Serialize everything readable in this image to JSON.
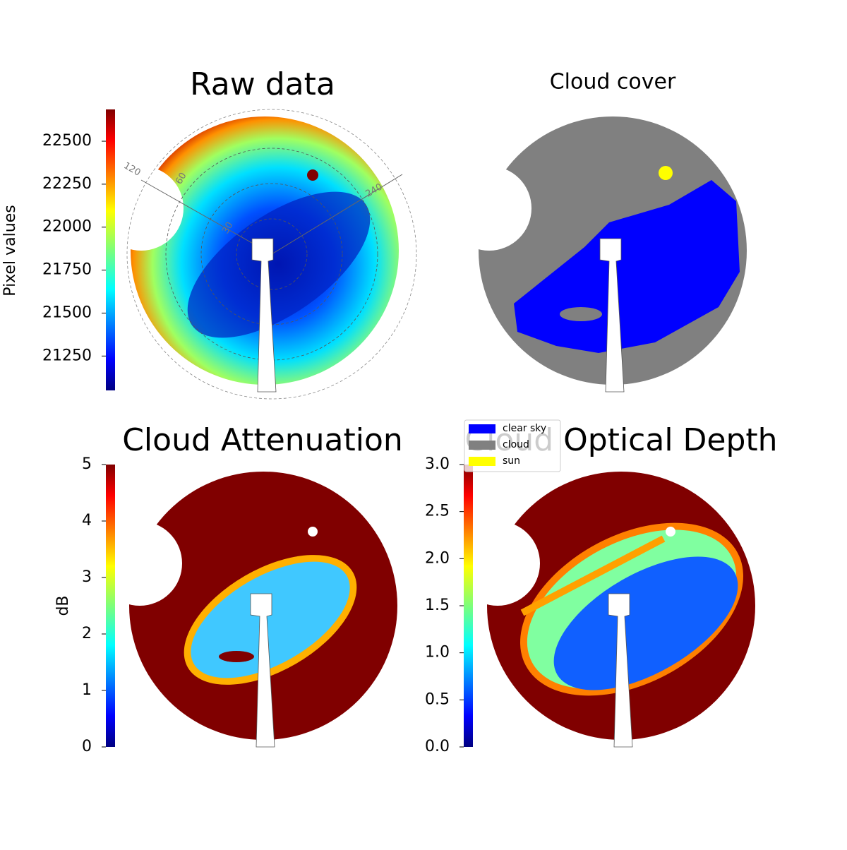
{
  "chart_data": [
    {
      "type": "image",
      "title": "Raw data",
      "colormap": "jet",
      "colorbar_label": "Pixel values",
      "ylim": [
        21050,
        22685
      ],
      "yticks": [
        21250,
        21500,
        21750,
        22000,
        22250,
        22500
      ],
      "polar_labels": [
        "120",
        "60",
        "240",
        "30"
      ]
    },
    {
      "type": "image",
      "title": "Cloud cover",
      "series": [
        {
          "name": "clear sky",
          "color": "#0000ff"
        },
        {
          "name": "cloud",
          "color": "#808080"
        },
        {
          "name": "sun",
          "color": "#ffff00"
        }
      ]
    },
    {
      "type": "image",
      "title": "Cloud Attenuation",
      "colormap": "jet",
      "colorbar_label": "dB",
      "ylim": [
        0,
        5
      ],
      "yticks": [
        0,
        1,
        2,
        3,
        4,
        5
      ]
    },
    {
      "type": "image",
      "title": "Cloud Optical Depth",
      "colormap": "jet",
      "ylim": [
        0,
        3
      ],
      "yticks": [
        {
          "value": 0,
          "label": "0.0"
        },
        0.5,
        {
          "value": 1,
          "label": "1.0"
        },
        1.5,
        {
          "value": 2,
          "label": "2.0"
        },
        2.5,
        {
          "value": 3,
          "label": "3.0"
        }
      ]
    }
  ]
}
